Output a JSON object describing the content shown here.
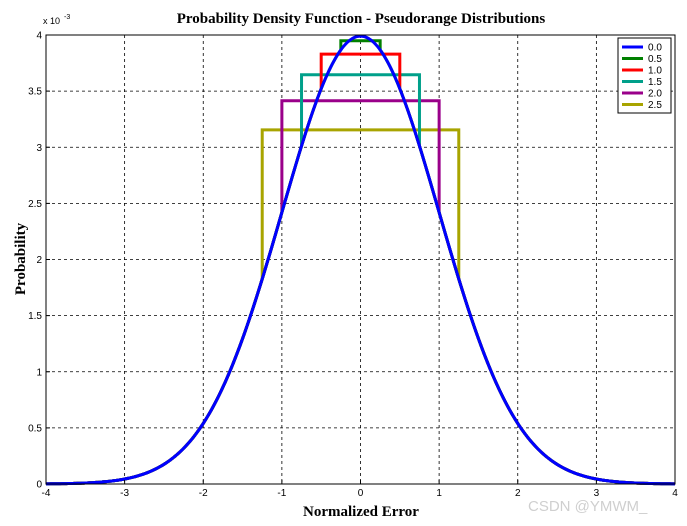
{
  "chart_data": {
    "type": "line",
    "title": "Probability Density Function - Pseudorange Distributions",
    "xlabel": "Normalized Error",
    "ylabel": "Probability",
    "y_multiplier_label": "x 10",
    "y_multiplier_exp": "-3",
    "xlim": [
      -4,
      4
    ],
    "ylim": [
      0,
      4
    ],
    "x_ticks": [
      -4,
      -3,
      -2,
      -1,
      0,
      1,
      2,
      3,
      4
    ],
    "y_ticks": [
      0,
      0.5,
      1,
      1.5,
      2,
      2.5,
      3,
      3.5,
      4
    ],
    "grid": true,
    "legend_position": "top-right",
    "series": [
      {
        "name": "0.0",
        "color": "#0000ff",
        "width": 0.0
      },
      {
        "name": "0.5",
        "color": "#008000",
        "width": 0.5
      },
      {
        "name": "1.0",
        "color": "#ff0000",
        "width": 1.0
      },
      {
        "name": "1.5",
        "color": "#00a08a",
        "width": 1.5
      },
      {
        "name": "2.0",
        "color": "#9a008a",
        "width": 2.0
      },
      {
        "name": "2.5",
        "color": "#a8a400",
        "width": 2.5
      }
    ]
  },
  "watermark": "CSDN @YMWM_"
}
